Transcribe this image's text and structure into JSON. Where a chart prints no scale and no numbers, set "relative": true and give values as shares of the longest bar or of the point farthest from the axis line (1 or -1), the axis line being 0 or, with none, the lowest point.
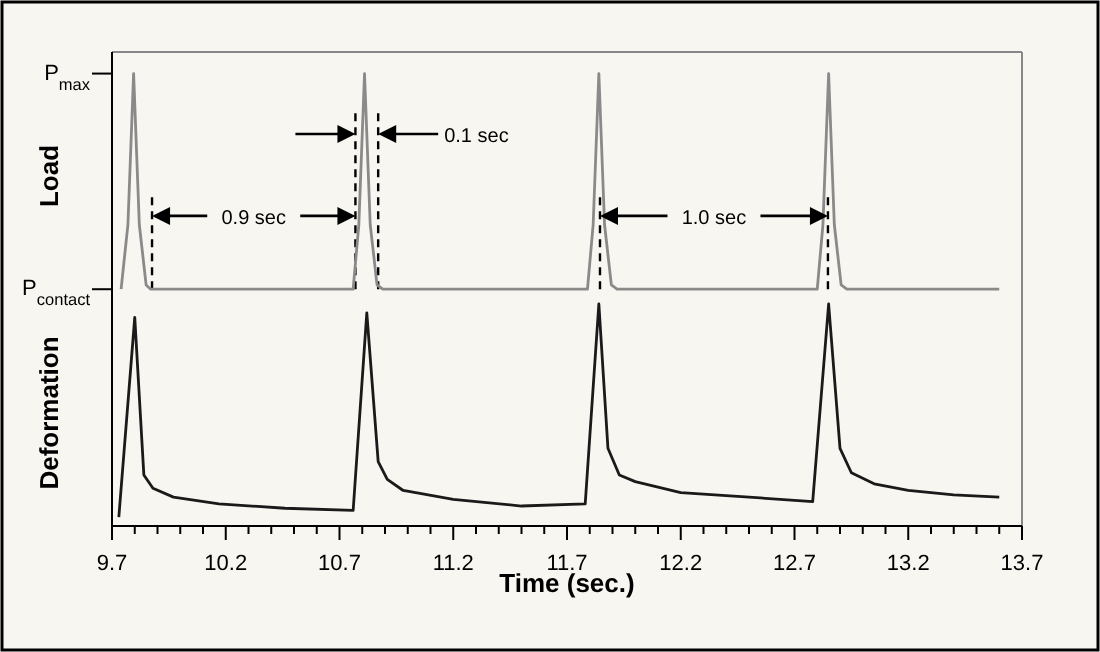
{
  "chart_data": [
    {
      "type": "line",
      "ylabel": "Load",
      "xlim": [
        9.7,
        13.7
      ],
      "relative": true,
      "tick_labels": false,
      "x": [
        9.74,
        9.77,
        9.795,
        9.82,
        9.85,
        9.87,
        10.76,
        10.785,
        10.81,
        10.835,
        10.865,
        10.89,
        11.79,
        11.815,
        11.84,
        11.865,
        11.895,
        11.92,
        12.8,
        12.825,
        12.85,
        12.875,
        12.905,
        12.93,
        13.6
      ],
      "series": [
        {
          "color": "#8a8a8a",
          "values": [
            0,
            0.3,
            1,
            0.3,
            0.02,
            0,
            0,
            0.3,
            1,
            0.3,
            0.02,
            0,
            0,
            0.3,
            1,
            0.3,
            0.02,
            0,
            0,
            0.3,
            1,
            0.3,
            0.02,
            0,
            0
          ]
        }
      ],
      "ref_lines": [
        {
          "axis": "y",
          "value": 1,
          "label": "P$_{max}$",
          "color": "#000000"
        },
        {
          "axis": "y",
          "value": 0,
          "label": "P$_{contact}$",
          "color": "#000000"
        },
        {
          "axis": "x",
          "value": 9.876,
          "color": "#000000",
          "line_style": "dashed"
        },
        {
          "axis": "x",
          "value": 10.77,
          "color": "#000000",
          "line_style": "dashed"
        },
        {
          "axis": "x",
          "value": 10.87,
          "color": "#000000",
          "line_style": "dashed"
        },
        {
          "axis": "x",
          "value": 11.845,
          "color": "#000000",
          "line_style": "dashed"
        },
        {
          "axis": "x",
          "value": 12.847,
          "color": "#000000",
          "line_style": "dashed"
        }
      ],
      "annotations": [
        "0.9 sec",
        "0.1 sec",
        "1.0 sec"
      ]
    },
    {
      "type": "line",
      "ylabel": "Deformation",
      "xlabel": "Time (sec.)",
      "relative": true,
      "xlim": [
        9.7,
        13.7
      ],
      "tick_labels": "x",
      "xticks": [
        9.7,
        {
          "value": 9.8,
          "label": null
        },
        {
          "value": 9.9,
          "label": null
        },
        {
          "value": 10,
          "label": null
        },
        {
          "value": 10.1,
          "label": null
        },
        10.2,
        {
          "value": 10.3,
          "label": null
        },
        {
          "value": 10.4,
          "label": null
        },
        {
          "value": 10.5,
          "label": null
        },
        {
          "value": 10.6,
          "label": null
        },
        10.7,
        {
          "value": 10.8,
          "label": null
        },
        {
          "value": 10.9,
          "label": null
        },
        {
          "value": 11,
          "label": null
        },
        {
          "value": 11.1,
          "label": null
        },
        11.2,
        {
          "value": 11.3,
          "label": null
        },
        {
          "value": 11.4,
          "label": null
        },
        {
          "value": 11.5,
          "label": null
        },
        {
          "value": 11.6,
          "label": null
        },
        11.7,
        {
          "value": 11.8,
          "label": null
        },
        {
          "value": 11.9,
          "label": null
        },
        {
          "value": 12,
          "label": null
        },
        {
          "value": 12.1,
          "label": null
        },
        12.2,
        {
          "value": 12.3,
          "label": null
        },
        {
          "value": 12.4,
          "label": null
        },
        {
          "value": 12.5,
          "label": null
        },
        {
          "value": 12.6,
          "label": null
        },
        12.7,
        {
          "value": 12.8,
          "label": null
        },
        {
          "value": 12.9,
          "label": null
        },
        {
          "value": 13,
          "label": null
        },
        {
          "value": 13.1,
          "label": null
        },
        13.2,
        {
          "value": 13.3,
          "label": null
        },
        {
          "value": 13.4,
          "label": null
        },
        {
          "value": 13.5,
          "label": null
        },
        {
          "value": 13.6,
          "label": null
        },
        13.7
      ],
      "x": [
        9.73,
        9.8,
        9.84,
        9.88,
        9.97,
        10.17,
        10.46,
        10.76,
        10.82,
        10.87,
        10.91,
        10.98,
        11.2,
        11.5,
        11.78,
        11.84,
        11.88,
        11.93,
        12.0,
        12.2,
        12.5,
        12.78,
        12.85,
        12.9,
        12.95,
        13.05,
        13.2,
        13.4,
        13.6
      ],
      "series": [
        {
          "color": "#1a1a1a",
          "values": [
            0.04,
            0.94,
            0.23,
            0.17,
            0.13,
            0.1,
            0.08,
            0.07,
            0.96,
            0.29,
            0.21,
            0.16,
            0.12,
            0.09,
            0.1,
            1,
            0.35,
            0.23,
            0.2,
            0.15,
            0.13,
            0.11,
            1,
            0.35,
            0.24,
            0.19,
            0.16,
            0.14,
            0.13
          ]
        }
      ]
    }
  ]
}
